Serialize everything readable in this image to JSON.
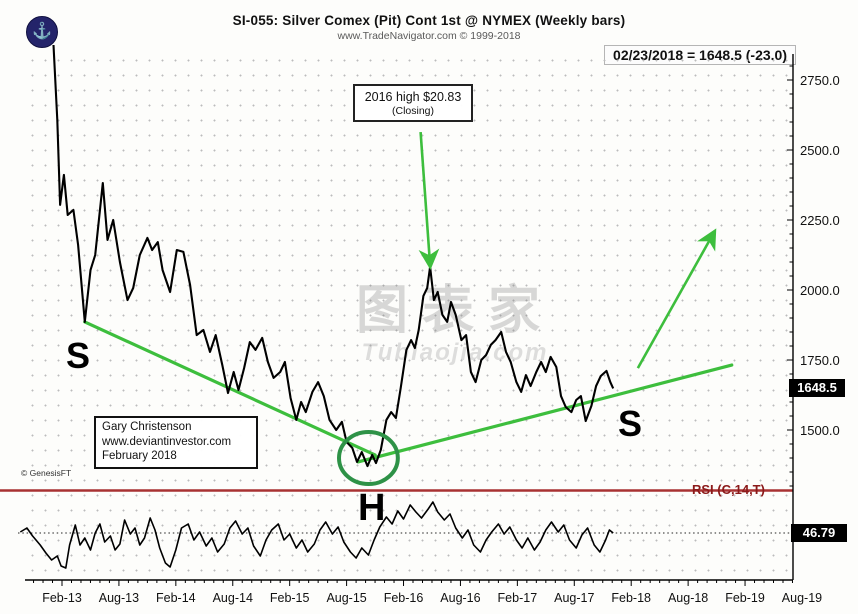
{
  "header": {
    "title": "SI-055:  Silver Comex (Pit) Cont 1st @ NYMEX  (Weekly bars)",
    "subtitle": "www.TradeNavigator.com © 1999-2018",
    "quote": "02/23/2018 = 1648.5 (-23.0)",
    "logo_glyph": "⚓"
  },
  "note_box": {
    "line1": "2016 high $20.83",
    "line2": "(Closing)"
  },
  "credit_box": {
    "line1": "Gary Christenson",
    "line2": "www.deviantinvestor.com",
    "line3": "February 2018"
  },
  "labels": {
    "genesis": "© GenesisFT",
    "rsi": "RSI (C,14,T)",
    "left_shoulder": "S",
    "head": "H",
    "right_shoulder": "S",
    "price_badge": "1648.5",
    "rsi_badge": "46.79"
  },
  "watermark": {
    "main": "图表家",
    "sub": "Tubiaojia.com"
  },
  "colors": {
    "trend_green": "#3dbe3d",
    "circle_green": "#2e9247",
    "rsi_red": "#a83232",
    "price_line": "#000000",
    "badge_bg": "#000000",
    "badge_fg": "#ffffff"
  },
  "chart_data": {
    "type": "line",
    "title": "SI-055: Silver Comex (Pit) Cont 1st @ NYMEX (Weekly bars)",
    "x_unit": "months since Jan-2013",
    "x_ticks": [
      {
        "m": 1,
        "label": "Feb-13"
      },
      {
        "m": 7,
        "label": "Aug-13"
      },
      {
        "m": 13,
        "label": "Feb-14"
      },
      {
        "m": 19,
        "label": "Aug-14"
      },
      {
        "m": 25,
        "label": "Feb-15"
      },
      {
        "m": 31,
        "label": "Aug-15"
      },
      {
        "m": 37,
        "label": "Feb-16"
      },
      {
        "m": 43,
        "label": "Aug-16"
      },
      {
        "m": 49,
        "label": "Feb-17"
      },
      {
        "m": 55,
        "label": "Aug-17"
      },
      {
        "m": 61,
        "label": "Feb-18"
      },
      {
        "m": 67,
        "label": "Aug-18"
      },
      {
        "m": 73,
        "label": "Feb-19"
      },
      {
        "m": 79,
        "label": "Aug-19"
      }
    ],
    "price_axis": {
      "ticks": [
        2750,
        2500,
        2250,
        2000,
        1750,
        1500
      ],
      "ylim": [
        1286,
        2839
      ],
      "last": 1648.5,
      "last_change": -23.0,
      "last_date": "02/23/2018"
    },
    "rsi_axis": {
      "ylim": [
        10,
        75
      ],
      "last": 46.79
    },
    "price_series": [
      [
        0.1,
        2875
      ],
      [
        0.5,
        2607
      ],
      [
        0.8,
        2304
      ],
      [
        1.2,
        2411
      ],
      [
        1.6,
        2268
      ],
      [
        2.2,
        2286
      ],
      [
        2.7,
        2161
      ],
      [
        3.4,
        1886
      ],
      [
        4.0,
        2071
      ],
      [
        4.5,
        2125
      ],
      [
        5.3,
        2382
      ],
      [
        5.8,
        2179
      ],
      [
        6.4,
        2250
      ],
      [
        7.1,
        2100
      ],
      [
        7.9,
        1964
      ],
      [
        8.5,
        2007
      ],
      [
        9.2,
        2125
      ],
      [
        10.0,
        2186
      ],
      [
        10.5,
        2143
      ],
      [
        11.1,
        2171
      ],
      [
        11.6,
        2071
      ],
      [
        12.4,
        1993
      ],
      [
        13.1,
        2143
      ],
      [
        13.8,
        2136
      ],
      [
        14.5,
        2018
      ],
      [
        15.2,
        1839
      ],
      [
        15.9,
        1857
      ],
      [
        16.6,
        1779
      ],
      [
        17.2,
        1839
      ],
      [
        17.9,
        1732
      ],
      [
        18.5,
        1632
      ],
      [
        19.1,
        1707
      ],
      [
        19.6,
        1643
      ],
      [
        20.2,
        1721
      ],
      [
        20.8,
        1814
      ],
      [
        21.4,
        1786
      ],
      [
        22.1,
        1829
      ],
      [
        22.7,
        1743
      ],
      [
        23.3,
        1686
      ],
      [
        24.0,
        1707
      ],
      [
        24.5,
        1743
      ],
      [
        25.1,
        1614
      ],
      [
        25.7,
        1536
      ],
      [
        26.2,
        1600
      ],
      [
        26.7,
        1564
      ],
      [
        27.4,
        1636
      ],
      [
        28.0,
        1671
      ],
      [
        28.6,
        1621
      ],
      [
        29.2,
        1536
      ],
      [
        29.9,
        1500
      ],
      [
        30.5,
        1529
      ],
      [
        31.0,
        1457
      ],
      [
        31.6,
        1436
      ],
      [
        32.1,
        1386
      ],
      [
        32.6,
        1421
      ],
      [
        33.2,
        1371
      ],
      [
        33.7,
        1411
      ],
      [
        34.1,
        1382
      ],
      [
        34.6,
        1429
      ],
      [
        35.2,
        1536
      ],
      [
        35.7,
        1564
      ],
      [
        36.2,
        1543
      ],
      [
        36.7,
        1650
      ],
      [
        37.3,
        1786
      ],
      [
        37.8,
        1821
      ],
      [
        38.2,
        1793
      ],
      [
        38.6,
        1857
      ],
      [
        39.1,
        1979
      ],
      [
        39.5,
        2007
      ],
      [
        39.8,
        2083
      ],
      [
        40.2,
        1964
      ],
      [
        40.6,
        1993
      ],
      [
        41.1,
        1911
      ],
      [
        41.6,
        1886
      ],
      [
        42.0,
        1957
      ],
      [
        42.5,
        1911
      ],
      [
        43.1,
        1821
      ],
      [
        43.6,
        1839
      ],
      [
        44.1,
        1707
      ],
      [
        44.6,
        1671
      ],
      [
        45.2,
        1750
      ],
      [
        45.7,
        1768
      ],
      [
        46.2,
        1804
      ],
      [
        46.7,
        1821
      ],
      [
        47.3,
        1850
      ],
      [
        47.8,
        1779
      ],
      [
        48.3,
        1743
      ],
      [
        48.9,
        1671
      ],
      [
        49.4,
        1636
      ],
      [
        49.9,
        1696
      ],
      [
        50.4,
        1657
      ],
      [
        51.0,
        1707
      ],
      [
        51.5,
        1743
      ],
      [
        52.0,
        1707
      ],
      [
        52.5,
        1761
      ],
      [
        53.1,
        1725
      ],
      [
        53.6,
        1621
      ],
      [
        54.1,
        1582
      ],
      [
        54.7,
        1564
      ],
      [
        55.2,
        1607
      ],
      [
        55.7,
        1621
      ],
      [
        56.2,
        1532
      ],
      [
        56.8,
        1586
      ],
      [
        57.3,
        1657
      ],
      [
        57.8,
        1693
      ],
      [
        58.4,
        1711
      ],
      [
        58.8,
        1671
      ],
      [
        59.1,
        1648.5
      ]
    ],
    "rsi_series": [
      [
        -3.4,
        47.6
      ],
      [
        -2.7,
        50.8
      ],
      [
        -2.1,
        44.4
      ],
      [
        -1.3,
        37.2
      ],
      [
        -0.7,
        30.8
      ],
      [
        -0.1,
        25.2
      ],
      [
        0.5,
        28.4
      ],
      [
        0.9,
        20.4
      ],
      [
        1.4,
        18.8
      ],
      [
        1.8,
        37.2
      ],
      [
        2.4,
        53.2
      ],
      [
        2.9,
        37.2
      ],
      [
        3.4,
        42.8
      ],
      [
        4.0,
        33.2
      ],
      [
        4.5,
        46.8
      ],
      [
        5.0,
        54.0
      ],
      [
        5.5,
        39.6
      ],
      [
        6.1,
        44.4
      ],
      [
        6.6,
        33.2
      ],
      [
        7.1,
        38.0
      ],
      [
        7.6,
        57.2
      ],
      [
        8.2,
        46.0
      ],
      [
        8.7,
        50.8
      ],
      [
        9.2,
        37.2
      ],
      [
        9.7,
        42.8
      ],
      [
        10.3,
        58.8
      ],
      [
        10.8,
        49.2
      ],
      [
        11.3,
        34.8
      ],
      [
        11.9,
        22.8
      ],
      [
        12.4,
        19.6
      ],
      [
        13.0,
        33.2
      ],
      [
        13.6,
        50.8
      ],
      [
        14.3,
        54.0
      ],
      [
        14.9,
        41.2
      ],
      [
        15.5,
        47.6
      ],
      [
        16.2,
        36.4
      ],
      [
        16.8,
        42.8
      ],
      [
        17.4,
        31.6
      ],
      [
        18.1,
        38.0
      ],
      [
        18.7,
        50.8
      ],
      [
        19.3,
        56.4
      ],
      [
        20.0,
        46.0
      ],
      [
        20.6,
        50.8
      ],
      [
        21.2,
        36.4
      ],
      [
        21.9,
        28.4
      ],
      [
        22.5,
        41.2
      ],
      [
        23.1,
        49.2
      ],
      [
        23.8,
        54.0
      ],
      [
        24.4,
        41.2
      ],
      [
        25.0,
        46.0
      ],
      [
        25.7,
        34.8
      ],
      [
        26.3,
        41.2
      ],
      [
        26.9,
        31.6
      ],
      [
        27.6,
        38.0
      ],
      [
        28.2,
        49.2
      ],
      [
        28.8,
        55.6
      ],
      [
        29.5,
        46.0
      ],
      [
        30.1,
        51.6
      ],
      [
        30.7,
        39.6
      ],
      [
        31.4,
        31.6
      ],
      [
        32.0,
        26.8
      ],
      [
        32.6,
        34.8
      ],
      [
        33.3,
        29.2
      ],
      [
        33.9,
        41.2
      ],
      [
        34.5,
        51.6
      ],
      [
        35.2,
        59.6
      ],
      [
        35.8,
        54.0
      ],
      [
        36.4,
        64.4
      ],
      [
        37.0,
        58.0
      ],
      [
        37.7,
        69.2
      ],
      [
        38.3,
        63.6
      ],
      [
        38.9,
        58.8
      ],
      [
        39.6,
        66.0
      ],
      [
        40.1,
        71.6
      ],
      [
        40.6,
        63.6
      ],
      [
        41.3,
        57.2
      ],
      [
        41.9,
        62.0
      ],
      [
        42.5,
        50.8
      ],
      [
        43.2,
        42.8
      ],
      [
        43.8,
        49.2
      ],
      [
        44.4,
        37.2
      ],
      [
        45.1,
        31.6
      ],
      [
        45.7,
        41.2
      ],
      [
        46.3,
        47.6
      ],
      [
        47.0,
        54.0
      ],
      [
        47.6,
        46.0
      ],
      [
        48.2,
        51.6
      ],
      [
        48.9,
        41.2
      ],
      [
        49.5,
        34.8
      ],
      [
        50.1,
        42.8
      ],
      [
        50.8,
        33.2
      ],
      [
        51.4,
        39.6
      ],
      [
        52.0,
        49.2
      ],
      [
        52.6,
        55.6
      ],
      [
        53.3,
        47.6
      ],
      [
        53.9,
        53.2
      ],
      [
        54.5,
        41.2
      ],
      [
        55.2,
        34.8
      ],
      [
        55.8,
        45.2
      ],
      [
        56.4,
        50.8
      ],
      [
        57.1,
        37.2
      ],
      [
        57.7,
        31.6
      ],
      [
        58.3,
        41.2
      ],
      [
        58.7,
        49.2
      ],
      [
        59.1,
        46.79
      ]
    ],
    "overlays": {
      "trendline_left_shoulder": {
        "from": [
          3.4,
          1886
        ],
        "to": [
          34.0,
          1411
        ]
      },
      "trendline_right_shoulder": {
        "from": [
          32.2,
          1386
        ],
        "to": [
          71.6,
          1732
        ]
      },
      "arrow_to_2016_high": {
        "from": [
          38.8,
          2564
        ],
        "to": [
          39.8,
          2090
        ]
      },
      "breakout_arrow": {
        "from": [
          61.7,
          1721
        ],
        "to": [
          69.7,
          2204
        ]
      },
      "head_circle": {
        "center": [
          33.3,
          1400
        ],
        "rx_months": 3.1,
        "ry_price": 93
      }
    }
  }
}
